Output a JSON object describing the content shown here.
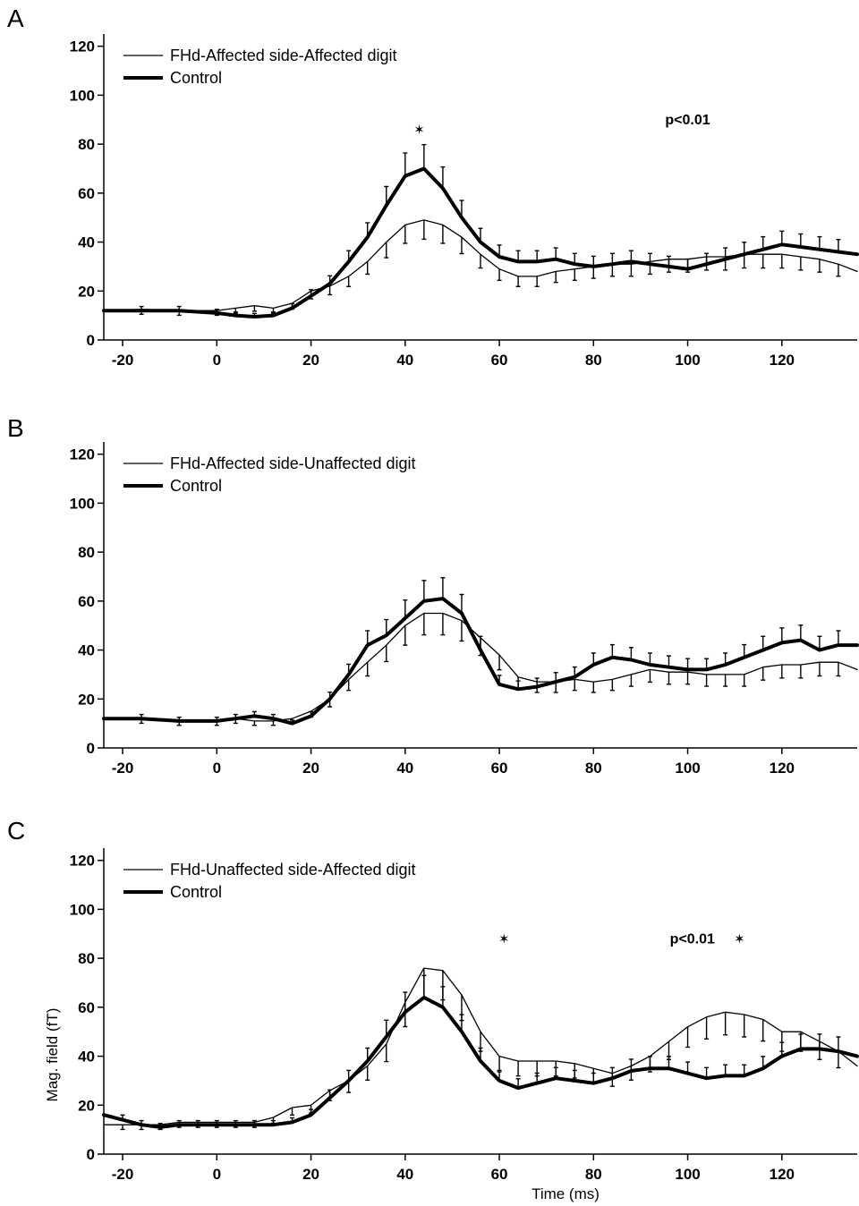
{
  "chart_data": [
    {
      "type": "line",
      "panel": "A",
      "xlim": [
        -24,
        136
      ],
      "ylim": [
        0,
        125
      ],
      "xticks": [
        -20,
        0,
        20,
        40,
        60,
        80,
        100,
        120
      ],
      "yticks": [
        0,
        20,
        40,
        60,
        80,
        100,
        120
      ],
      "xlabel": "",
      "ylabel": "",
      "legend": "top-left",
      "series": [
        {
          "name": "FHd-Affected side-Affected digit",
          "style": "thin",
          "x": [
            -24,
            -16,
            -8,
            0,
            4,
            8,
            12,
            16,
            20,
            24,
            28,
            32,
            36,
            40,
            44,
            48,
            52,
            56,
            60,
            64,
            68,
            72,
            76,
            80,
            84,
            88,
            92,
            96,
            100,
            104,
            108,
            112,
            116,
            120,
            124,
            128,
            132,
            136
          ],
          "y": [
            12,
            12.5,
            12,
            12,
            13,
            14,
            13,
            15,
            20,
            22,
            26,
            32,
            40,
            47,
            49,
            47,
            42,
            35,
            29,
            26,
            26,
            28,
            29,
            30,
            31,
            31,
            32,
            33,
            33,
            34,
            34,
            35,
            35,
            35,
            34,
            33,
            31,
            28
          ]
        },
        {
          "name": "Control",
          "style": "thick",
          "x": [
            -24,
            -16,
            -8,
            0,
            4,
            8,
            12,
            16,
            20,
            24,
            28,
            32,
            36,
            40,
            44,
            48,
            52,
            56,
            60,
            64,
            68,
            72,
            76,
            80,
            84,
            88,
            92,
            96,
            100,
            104,
            108,
            112,
            116,
            120,
            124,
            128,
            132,
            136
          ],
          "y": [
            12,
            12,
            12,
            11,
            10,
            9.5,
            10,
            13,
            18,
            23,
            32,
            42,
            55,
            67,
            70,
            62,
            50,
            40,
            34,
            32,
            32,
            33,
            31,
            30,
            31,
            32,
            31,
            30,
            29,
            31,
            33,
            35,
            37,
            39,
            38,
            37,
            36,
            35
          ]
        }
      ],
      "annotations": [
        {
          "text": "p<0.01",
          "x": 100,
          "y": 88
        },
        {
          "text": "✶",
          "x": 43,
          "y": 84
        }
      ]
    },
    {
      "type": "line",
      "panel": "B",
      "xlim": [
        -24,
        136
      ],
      "ylim": [
        0,
        125
      ],
      "xticks": [
        -20,
        0,
        20,
        40,
        60,
        80,
        100,
        120
      ],
      "yticks": [
        0,
        20,
        40,
        60,
        80,
        100,
        120
      ],
      "xlabel": "",
      "ylabel": "",
      "legend": "top-left",
      "series": [
        {
          "name": "FHd-Affected side-Unaffected digit",
          "style": "thin",
          "x": [
            -24,
            -16,
            -8,
            0,
            4,
            8,
            12,
            16,
            20,
            24,
            28,
            32,
            36,
            40,
            44,
            48,
            52,
            56,
            60,
            64,
            68,
            72,
            76,
            80,
            84,
            88,
            92,
            96,
            100,
            104,
            108,
            112,
            116,
            120,
            124,
            128,
            132,
            136
          ],
          "y": [
            12,
            12,
            11,
            11,
            12,
            11,
            11,
            12,
            15,
            20,
            28,
            35,
            42,
            50,
            55,
            55,
            52,
            45,
            38,
            29,
            27,
            27,
            28,
            27,
            28,
            30,
            32,
            31,
            31,
            30,
            30,
            30,
            33,
            34,
            34,
            35,
            35,
            32
          ]
        },
        {
          "name": "Control",
          "style": "thick",
          "x": [
            -24,
            -16,
            -8,
            0,
            4,
            8,
            12,
            16,
            20,
            24,
            28,
            32,
            36,
            40,
            44,
            48,
            52,
            56,
            60,
            64,
            68,
            72,
            76,
            80,
            84,
            88,
            92,
            96,
            100,
            104,
            108,
            112,
            116,
            120,
            124,
            128,
            132,
            136
          ],
          "y": [
            12,
            12,
            11,
            11,
            12,
            13,
            12,
            10,
            13,
            20,
            30,
            42,
            46,
            53,
            60,
            61,
            55,
            40,
            26,
            24,
            25,
            27,
            29,
            34,
            37,
            36,
            34,
            33,
            32,
            32,
            34,
            37,
            40,
            43,
            44,
            40,
            42,
            42
          ]
        }
      ],
      "annotations": []
    },
    {
      "type": "line",
      "panel": "C",
      "xlim": [
        -24,
        136
      ],
      "ylim": [
        0,
        125
      ],
      "xticks": [
        -20,
        0,
        20,
        40,
        60,
        80,
        100,
        120
      ],
      "yticks": [
        0,
        20,
        40,
        60,
        80,
        100,
        120
      ],
      "xlabel": "Time (ms)",
      "ylabel": "Mag. field (fT)",
      "legend": "top-left",
      "series": [
        {
          "name": "FHd-Unaffected side-Affected digit",
          "style": "thin",
          "x": [
            -24,
            -20,
            -16,
            -12,
            -8,
            -4,
            0,
            4,
            8,
            12,
            16,
            20,
            24,
            28,
            32,
            36,
            40,
            44,
            48,
            52,
            56,
            60,
            64,
            68,
            72,
            76,
            80,
            84,
            88,
            92,
            96,
            100,
            104,
            108,
            112,
            116,
            120,
            124,
            128,
            132,
            136
          ],
          "y": [
            12,
            12,
            12,
            12,
            13,
            13,
            13,
            13,
            13,
            15,
            19,
            20,
            26,
            30,
            36,
            45,
            62,
            76,
            75,
            65,
            50,
            40,
            38,
            38,
            38,
            37,
            35,
            33,
            36,
            40,
            46,
            52,
            56,
            58,
            57,
            55,
            50,
            50,
            46,
            42,
            36
          ]
        },
        {
          "name": "Control",
          "style": "thick",
          "x": [
            -24,
            -20,
            -16,
            -12,
            -8,
            -4,
            0,
            4,
            8,
            12,
            16,
            20,
            24,
            28,
            32,
            36,
            40,
            44,
            48,
            52,
            56,
            60,
            64,
            68,
            72,
            76,
            80,
            84,
            88,
            92,
            96,
            100,
            104,
            108,
            112,
            116,
            120,
            124,
            128,
            132,
            136
          ],
          "y": [
            16,
            14,
            12,
            11,
            12,
            12,
            12,
            12,
            12,
            12,
            13,
            16,
            23,
            30,
            38,
            48,
            58,
            64,
            60,
            50,
            38,
            30,
            27,
            29,
            31,
            30,
            29,
            31,
            34,
            35,
            35,
            33,
            31,
            32,
            32,
            35,
            40,
            43,
            43,
            42,
            40
          ]
        }
      ],
      "annotations": [
        {
          "text": "p<0.01",
          "x": 101,
          "y": 86
        },
        {
          "text": "✶",
          "x": 61,
          "y": 86
        },
        {
          "text": "✶",
          "x": 111,
          "y": 86
        }
      ]
    }
  ]
}
